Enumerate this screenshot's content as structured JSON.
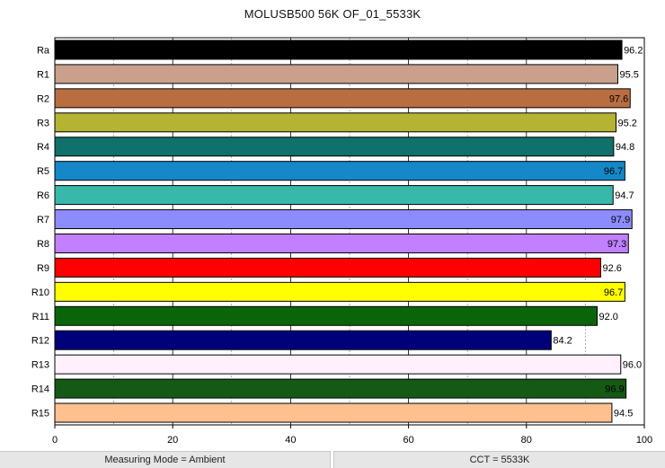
{
  "chart_data": {
    "type": "bar",
    "orientation": "horizontal",
    "title": "MOLUSB500 56K OF_01_5533K",
    "xlabel": "",
    "ylabel": "",
    "xlim": [
      0,
      100
    ],
    "x_ticks": [
      0,
      20,
      40,
      60,
      80,
      100
    ],
    "grid": "vertical solid at 20s, dashed at 10s",
    "categories": [
      "Ra",
      "R1",
      "R2",
      "R3",
      "R4",
      "R5",
      "R6",
      "R7",
      "R8",
      "R9",
      "R10",
      "R11",
      "R12",
      "R13",
      "R14",
      "R15"
    ],
    "values": [
      96.2,
      95.5,
      97.6,
      95.2,
      94.8,
      96.7,
      94.7,
      97.9,
      97.3,
      92.6,
      96.7,
      92.0,
      84.2,
      96.0,
      96.9,
      94.5
    ],
    "value_labels": [
      "96.2",
      "95.5",
      "97.6",
      "95.2",
      "94.8",
      "96.7",
      "94.7",
      "97.9",
      "97.3",
      "92.6",
      "96.7",
      "92.0",
      "84.2",
      "96.0",
      "96.9",
      "94.5"
    ],
    "colors": [
      "#000000",
      "#c8a08c",
      "#b96e42",
      "#b4b432",
      "#10706a",
      "#1488c8",
      "#38b8aa",
      "#8c8cff",
      "#c080ff",
      "#ff0000",
      "#ffff00",
      "#0a640a",
      "#00007a",
      "#fff0fc",
      "#145a14",
      "#ffc090"
    ],
    "label_inside": [
      false,
      false,
      true,
      false,
      false,
      true,
      false,
      true,
      true,
      false,
      true,
      false,
      false,
      false,
      true,
      false
    ]
  },
  "status_bar": {
    "measuring_mode": "Measuring Mode = Ambient",
    "cct": "CCT = 5533K"
  }
}
